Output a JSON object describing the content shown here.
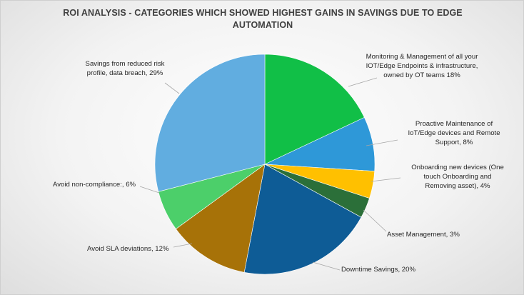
{
  "chart_data": {
    "type": "pie",
    "title_lines": [
      "ROI ANALYSIS - CATEGORIES WHICH SHOWED HIGHEST GAINS IN SAVINGS DUE TO EDGE",
      "AUTOMATION"
    ],
    "slices": [
      {
        "key": "monitoring",
        "value": 18,
        "color": "#11bf47",
        "label_lines": [
          "Monitoring & Management of all your",
          "IOT/Edge Endpoints & infrastructure,",
          "owned by OT teams  18%"
        ]
      },
      {
        "key": "proactive",
        "value": 8,
        "color": "#2e98d8",
        "label_lines": [
          "Proactive Maintenance of",
          "IoT/Edge devices and Remote",
          "Support, 8%"
        ]
      },
      {
        "key": "onboarding",
        "value": 4,
        "color": "#ffc000",
        "label_lines": [
          "Onboarding new devices (One",
          "touch Onboarding and",
          "Removing asset), 4%"
        ]
      },
      {
        "key": "asset",
        "value": 3,
        "color": "#2b6f39",
        "label_lines": [
          "Asset Management, 3%"
        ]
      },
      {
        "key": "downtime",
        "value": 20,
        "color": "#0e5c96",
        "label_lines": [
          "Downtime Savings, 20%"
        ]
      },
      {
        "key": "sla",
        "value": 12,
        "color": "#a77208",
        "label_lines": [
          "Avoid SLA deviations, 12%"
        ]
      },
      {
        "key": "noncompliance",
        "value": 6,
        "color": "#4ccf6a",
        "label_lines": [
          "Avoid non-compliance:, 6%"
        ]
      },
      {
        "key": "risk",
        "value": 29,
        "color": "#61ade0",
        "label_lines": [
          "Savings from reduced risk",
          "profile, data breach, 29%"
        ]
      }
    ]
  }
}
